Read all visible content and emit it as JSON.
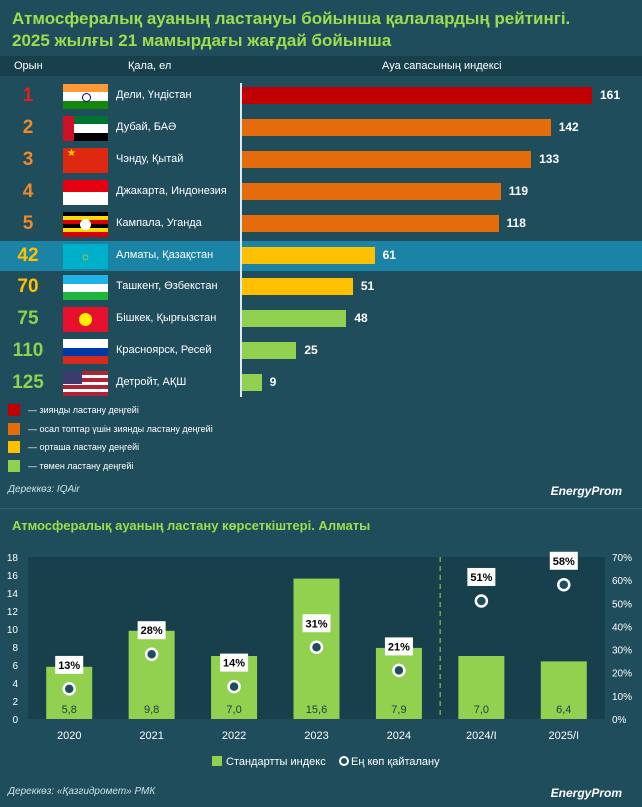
{
  "title_line1": "Атмосфералық ауаның ластануы бойынша қалалардың рейтингі.",
  "title_line2": "2025 жылғы 21 мамырдағы жағдай бойынша",
  "header": {
    "rank": "Орын",
    "city": "Қала, ел",
    "index": "Ауа сапасының индексі"
  },
  "ranking_max": 161,
  "ranking": [
    {
      "rank": "1",
      "city": "Дели, Үндістан",
      "value": 161,
      "level": "hazardous",
      "flag": "india"
    },
    {
      "rank": "2",
      "city": "Дубай, БАӘ",
      "value": 142,
      "level": "sensitive",
      "flag": "uae"
    },
    {
      "rank": "3",
      "city": "Чэнду, Қытай",
      "value": 133,
      "level": "sensitive",
      "flag": "china"
    },
    {
      "rank": "4",
      "city": "Джакарта, Индонезия",
      "value": 119,
      "level": "sensitive",
      "flag": "indonesia"
    },
    {
      "rank": "5",
      "city": "Кампала, Уганда",
      "value": 118,
      "level": "sensitive",
      "flag": "uganda"
    },
    {
      "rank": "42",
      "city": "Алматы, Қазақстан",
      "value": 61,
      "level": "moderate",
      "flag": "kazakhstan",
      "highlight": true
    },
    {
      "rank": "70",
      "city": "Ташкент, Өзбекстан",
      "value": 51,
      "level": "moderate",
      "flag": "uzbekistan"
    },
    {
      "rank": "75",
      "city": "Бішкек, Қырғызстан",
      "value": 48,
      "level": "low",
      "flag": "kyrgyzstan"
    },
    {
      "rank": "110",
      "city": "Красноярск, Ресей",
      "value": 25,
      "level": "low",
      "flag": "russia"
    },
    {
      "rank": "125",
      "city": "Детройт, АҚШ",
      "value": 9,
      "level": "low",
      "flag": "usa"
    }
  ],
  "level_colors": {
    "hazardous": "#c00000",
    "sensitive": "#e46c0a",
    "moderate": "#ffc000",
    "low": "#92d050"
  },
  "rank_colors": {
    "hazardous": "#e02020",
    "sensitive": "#f08a2a",
    "moderate": "#ffc000",
    "low": "#92d050"
  },
  "legend": [
    {
      "level": "hazardous",
      "label": "— зиянды ластану деңгейі"
    },
    {
      "level": "sensitive",
      "label": "— осал топтар үшін зиянды ластану деңгейі"
    },
    {
      "level": "moderate",
      "label": "— орташа ластану деңгейі"
    },
    {
      "level": "low",
      "label": "— төмен ластану деңгейі"
    }
  ],
  "source1": "Дереккөз: IQAir",
  "logo": "EnergyProm",
  "title2": "Атмосфералық ауаның ластану көрсеткіштері. Алматы",
  "chart_data": {
    "type": "bar",
    "categories": [
      "2020",
      "2021",
      "2022",
      "2023",
      "2024",
      "2024/I",
      "2025/I"
    ],
    "series": [
      {
        "name": "Стандартты индекс",
        "axis": "left",
        "values": [
          5.8,
          9.8,
          7.0,
          15.6,
          7.9,
          7.0,
          6.4
        ],
        "labels": [
          "5,8",
          "9,8",
          "7,0",
          "15,6",
          "7,9",
          "7,0",
          "6,4"
        ],
        "color": "#92d050"
      },
      {
        "name": "Ең көп қайталану",
        "axis": "right",
        "type": "scatter",
        "values": [
          13,
          28,
          14,
          31,
          21,
          51,
          58
        ],
        "labels": [
          "13%",
          "28%",
          "14%",
          "31%",
          "21%",
          "51%",
          "58%"
        ]
      }
    ],
    "y_left_ticks": [
      "0",
      "2",
      "4",
      "6",
      "8",
      "10",
      "12",
      "14",
      "16",
      "18"
    ],
    "y_left_range": [
      0,
      18
    ],
    "y_right_ticks": [
      "0%",
      "10%",
      "20%",
      "30%",
      "40%",
      "50%",
      "60%",
      "70%"
    ],
    "y_right_range": [
      0,
      70
    ],
    "dashed_separator_after": "2024",
    "legend_placement": "bottom"
  },
  "source2": "Дереккөз: «Қазгидромет» РМК"
}
